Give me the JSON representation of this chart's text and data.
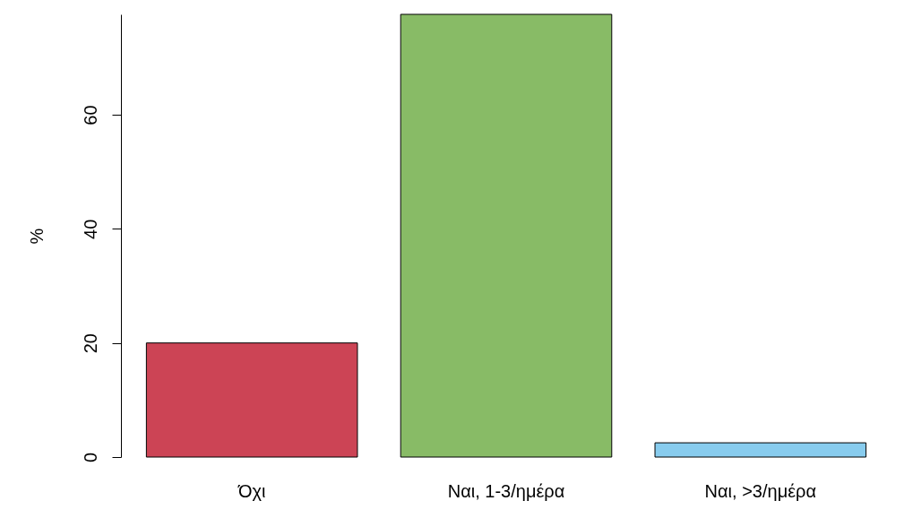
{
  "chart_data": {
    "type": "bar",
    "ylabel": "%",
    "categories": [
      "Όχι",
      "Ναι, 1-3/ημέρα",
      "Ναι, >3/ημέρα"
    ],
    "values": [
      20,
      77.6,
      2.5
    ],
    "colors": [
      "#cc4455",
      "#88bb66",
      "#88ccee"
    ],
    "ylim": [
      0,
      77.6
    ],
    "yticks": [
      0,
      20,
      40,
      60
    ],
    "grid": false
  }
}
